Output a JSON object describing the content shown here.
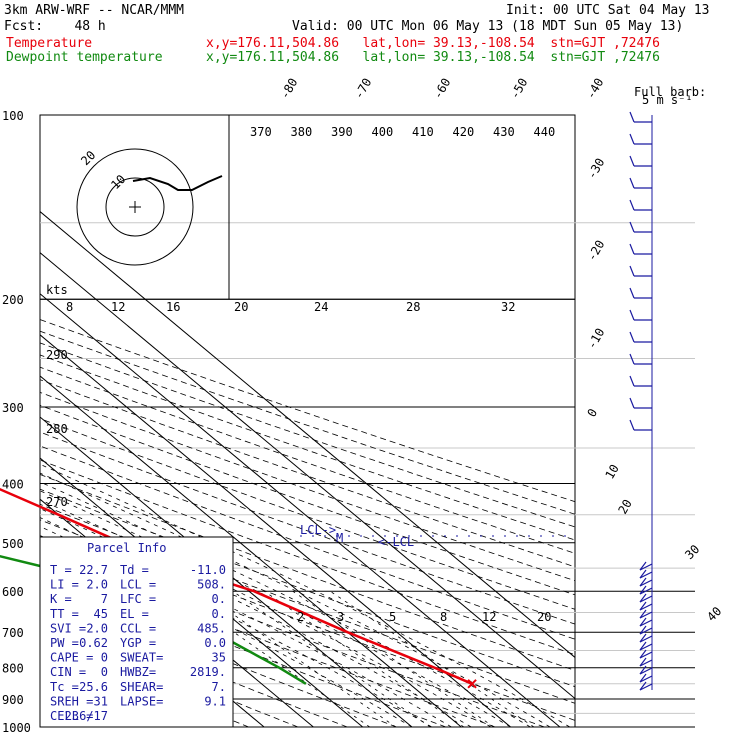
{
  "header": {
    "model": "3km ARW-WRF -- NCAR/MMM",
    "init": "Init: 00 UTC Sat 04 May 13",
    "fcst": "Fcst:    48 h",
    "valid": "Valid: 00 UTC Mon 06 May 13 (18 MDT Sun 05 May 13)",
    "temperature_label": "Temperature",
    "temperature_loc": "x,y=176.11,504.86   lat,lon= 39.13,-108.54  stn=GJT ,72476",
    "dewpoint_label": "Dewpoint temperature",
    "dewpoint_loc": "x,y=176.11,504.86   lat,lon= 39.13,-108.54  stn=GJT ,72476"
  },
  "colors": {
    "temperature": "#e8000b",
    "dewpoint": "#118a11",
    "wind": "#1a1aa0",
    "lcl": "#1a1aa0",
    "parcel_info": "#1a1aa0"
  },
  "chart_data": {
    "type": "line",
    "subtype": "skew-T log-P sounding",
    "y_axis": {
      "label": "",
      "scale": "log",
      "units": "hPa",
      "ticks": [
        100,
        200,
        300,
        400,
        500,
        600,
        700,
        800,
        900,
        1000
      ],
      "range": [
        1000,
        100
      ]
    },
    "isotherm_labels": [
      -80,
      -70,
      -60,
      -50,
      -40,
      -30,
      -20,
      -10,
      0,
      10,
      20,
      30,
      40
    ],
    "theta_e_labels": [
      370,
      380,
      390,
      400,
      410,
      420,
      430,
      440
    ],
    "theta_e_low_labels": [
      290,
      280,
      270
    ],
    "mixing_ratio_labels": [
      2,
      3,
      5,
      8,
      12,
      20
    ],
    "hodo_speed_labels": [
      8,
      12,
      16,
      20,
      24,
      28,
      32
    ],
    "hodo_axis_label": "kts",
    "hodograph_rings": [
      10,
      20
    ],
    "wind_barb_title": "Full barb:",
    "wind_barb_units": "5 m s⁻¹",
    "grid": true,
    "series": [
      {
        "name": "Temperature",
        "color": "#e8000b",
        "points": [
          [
            100,
            -36
          ],
          [
            110,
            -38
          ],
          [
            120,
            -41
          ],
          [
            140,
            -46
          ],
          [
            160,
            -51
          ],
          [
            180,
            -54
          ],
          [
            200,
            -55
          ],
          [
            220,
            -56
          ],
          [
            250,
            -53
          ],
          [
            300,
            -44
          ],
          [
            350,
            -35
          ],
          [
            400,
            -27
          ],
          [
            450,
            -20
          ],
          [
            500,
            -14
          ],
          [
            550,
            -8
          ],
          [
            600,
            1
          ],
          [
            700,
            10
          ],
          [
            800,
            19
          ],
          [
            850,
            22.7
          ]
        ]
      },
      {
        "name": "Dewpoint temperature",
        "color": "#118a11",
        "points": [
          [
            100,
            -80
          ],
          [
            120,
            -78
          ],
          [
            150,
            -78
          ],
          [
            180,
            -75
          ],
          [
            200,
            -71
          ],
          [
            250,
            -63
          ],
          [
            300,
            -54
          ],
          [
            340,
            -51
          ],
          [
            380,
            -55
          ],
          [
            420,
            -60
          ],
          [
            450,
            -62
          ],
          [
            500,
            -50
          ],
          [
            550,
            -35
          ],
          [
            600,
            -21
          ],
          [
            700,
            -17
          ],
          [
            800,
            -12.5
          ],
          [
            850,
            -11
          ]
        ]
      }
    ],
    "lcl_labels": {
      "left": "LCL->",
      "mid": "M",
      "right": "<-LCL"
    },
    "parcel_info": {
      "title": "Parcel Info",
      "rows": [
        [
          "T  =",
          "22.7",
          "Td =",
          "-11.0"
        ],
        [
          "LI =",
          "2.0",
          "LCL =",
          "508."
        ],
        [
          "K  =",
          "7",
          "LFC =",
          "0."
        ],
        [
          "TT =",
          "45",
          "EL  =",
          "0."
        ],
        [
          "SVI =",
          "2.0",
          "CCL =",
          "485."
        ],
        [
          "PW =",
          "0.62",
          "YGP =",
          "0.0"
        ],
        [
          "CAPE =",
          "0",
          "SWEAT=",
          "35"
        ],
        [
          "CIN =",
          "0",
          "HWBZ=",
          "2819."
        ],
        [
          "Tc =",
          "25.6",
          "SHEAR=",
          "7."
        ],
        [
          "SREH =",
          "31",
          "LAPSE=",
          "9.1"
        ],
        [
          "CELL =",
          "236/17",
          "",
          ""
        ]
      ]
    }
  }
}
